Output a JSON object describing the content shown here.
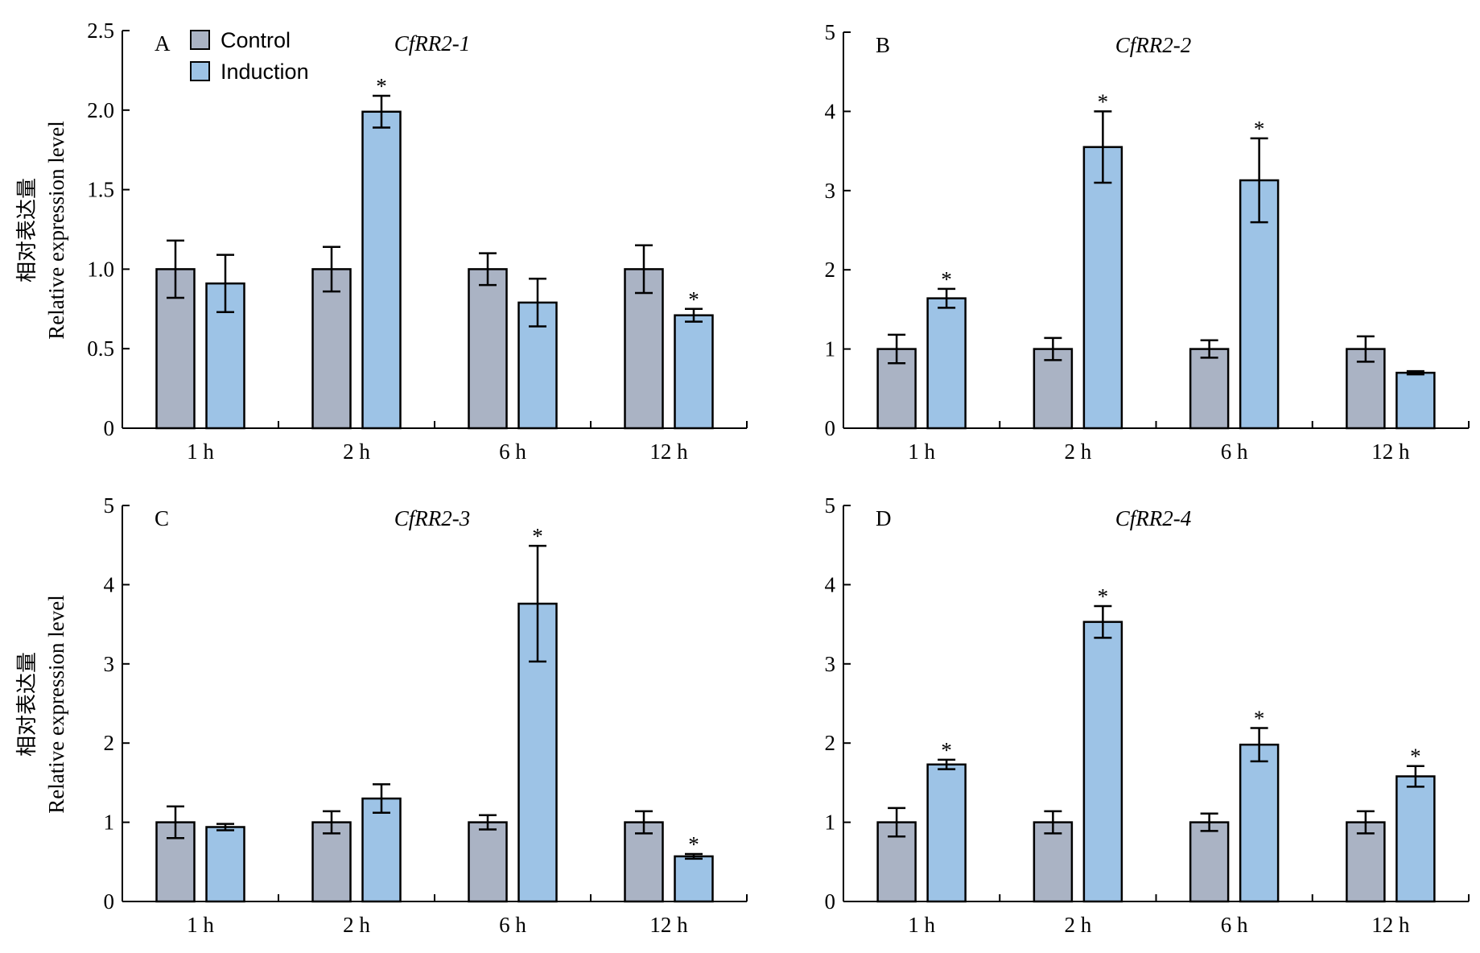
{
  "legend": {
    "control_label": "Control",
    "induction_label": "Induction"
  },
  "colors": {
    "control": "#aab3c4",
    "induction": "#9dc3e6",
    "stroke": "#000000"
  },
  "ylabel_cn": "相对表达量",
  "ylabel_en": "Relative expression level",
  "chart_data": [
    {
      "type": "bar",
      "panel": "A",
      "title": "CfRR2-1",
      "categories": [
        "1 h",
        "2 h",
        "6 h",
        "12 h"
      ],
      "ylim": [
        0,
        2.5
      ],
      "yticks": [
        "0",
        "0.5",
        "1.0",
        "1.5",
        "2.0",
        "2.5"
      ],
      "ytick_values": [
        0,
        0.5,
        1.0,
        1.5,
        2.0,
        2.5
      ],
      "series": [
        {
          "name": "Control",
          "values": [
            1.0,
            1.0,
            1.0,
            1.0
          ],
          "errors": [
            0.18,
            0.14,
            0.1,
            0.15
          ],
          "significant": [
            false,
            false,
            false,
            false
          ]
        },
        {
          "name": "Induction",
          "values": [
            0.91,
            1.99,
            0.79,
            0.71
          ],
          "errors": [
            0.18,
            0.1,
            0.15,
            0.04
          ],
          "significant": [
            false,
            true,
            false,
            true
          ]
        }
      ]
    },
    {
      "type": "bar",
      "panel": "B",
      "title": "CfRR2-2",
      "categories": [
        "1 h",
        "2 h",
        "6 h",
        "12 h"
      ],
      "ylim": [
        0,
        5
      ],
      "yticks": [
        "0",
        "1",
        "2",
        "3",
        "4",
        "5"
      ],
      "ytick_values": [
        0,
        1,
        2,
        3,
        4,
        5
      ],
      "series": [
        {
          "name": "Control",
          "values": [
            1.0,
            1.0,
            1.0,
            1.0
          ],
          "errors": [
            0.18,
            0.14,
            0.11,
            0.16
          ],
          "significant": [
            false,
            false,
            false,
            false
          ]
        },
        {
          "name": "Induction",
          "values": [
            1.64,
            3.55,
            3.13,
            0.7
          ],
          "errors": [
            0.12,
            0.45,
            0.53,
            0.02
          ],
          "significant": [
            true,
            true,
            true,
            false
          ]
        }
      ]
    },
    {
      "type": "bar",
      "panel": "C",
      "title": "CfRR2-3",
      "categories": [
        "1 h",
        "2 h",
        "6 h",
        "12 h"
      ],
      "ylim": [
        0,
        5
      ],
      "yticks": [
        "0",
        "1",
        "2",
        "3",
        "4",
        "5"
      ],
      "ytick_values": [
        0,
        1,
        2,
        3,
        4,
        5
      ],
      "series": [
        {
          "name": "Control",
          "values": [
            1.0,
            1.0,
            1.0,
            1.0
          ],
          "errors": [
            0.2,
            0.14,
            0.09,
            0.14
          ],
          "significant": [
            false,
            false,
            false,
            false
          ]
        },
        {
          "name": "Induction",
          "values": [
            0.94,
            1.3,
            3.76,
            0.57
          ],
          "errors": [
            0.04,
            0.18,
            0.73,
            0.03
          ],
          "significant": [
            false,
            false,
            true,
            true
          ]
        }
      ]
    },
    {
      "type": "bar",
      "panel": "D",
      "title": "CfRR2-4",
      "categories": [
        "1 h",
        "2 h",
        "6 h",
        "12 h"
      ],
      "ylim": [
        0,
        5
      ],
      "yticks": [
        "0",
        "1",
        "2",
        "3",
        "4",
        "5"
      ],
      "ytick_values": [
        0,
        1,
        2,
        3,
        4,
        5
      ],
      "series": [
        {
          "name": "Control",
          "values": [
            1.0,
            1.0,
            1.0,
            1.0
          ],
          "errors": [
            0.18,
            0.14,
            0.11,
            0.14
          ],
          "significant": [
            false,
            false,
            false,
            false
          ]
        },
        {
          "name": "Induction",
          "values": [
            1.73,
            3.53,
            1.98,
            1.58
          ],
          "errors": [
            0.06,
            0.2,
            0.21,
            0.13
          ],
          "significant": [
            true,
            true,
            true,
            true
          ]
        }
      ]
    }
  ]
}
